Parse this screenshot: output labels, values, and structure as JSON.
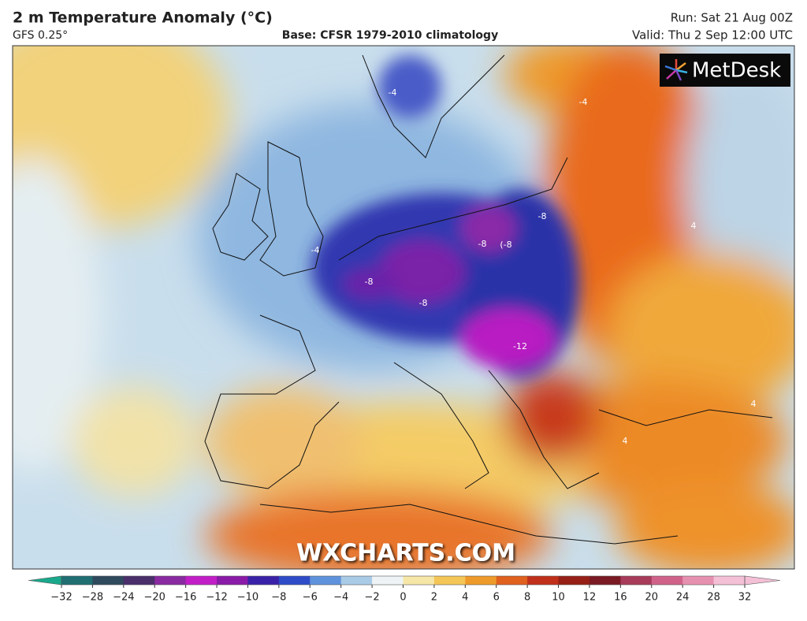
{
  "header": {
    "title": "2 m Temperature Anomaly (°C)",
    "model": "GFS 0.25°",
    "base": "Base: CFSR 1979-2010 climatology",
    "run": "Run: Sat 21 Aug 00Z",
    "valid": "Valid: Thu 2 Sep 12:00 UTC"
  },
  "logo": "MetDesk",
  "watermark": "WXCHARTS.COM",
  "map": {
    "contour_labels": [
      "-8",
      "-8",
      "(-8",
      "-8",
      "-8",
      "-12",
      "-4",
      "-4",
      "4",
      "4",
      "-4",
      "4"
    ]
  },
  "colorbar": {
    "ticks": [
      "−32",
      "−28",
      "−24",
      "−20",
      "−16",
      "−12",
      "−10",
      "−8",
      "−6",
      "−4",
      "−2",
      "0",
      "2",
      "4",
      "6",
      "8",
      "10",
      "12",
      "16",
      "20",
      "24",
      "28",
      "32"
    ],
    "colors": [
      "#1aa88c",
      "#1f6f73",
      "#2f4a5c",
      "#4a2f6a",
      "#8a2aa0",
      "#c21ec8",
      "#8a1aa8",
      "#3a22a8",
      "#2f4cc8",
      "#5f92dc",
      "#a9cbe6",
      "#eef4f6",
      "#f6e7a8",
      "#f4c657",
      "#ee9a2a",
      "#e0601e",
      "#c0301a",
      "#962016",
      "#7a1a22",
      "#a83a5a",
      "#d0628a",
      "#e690b0",
      "#f4c0d6"
    ]
  }
}
